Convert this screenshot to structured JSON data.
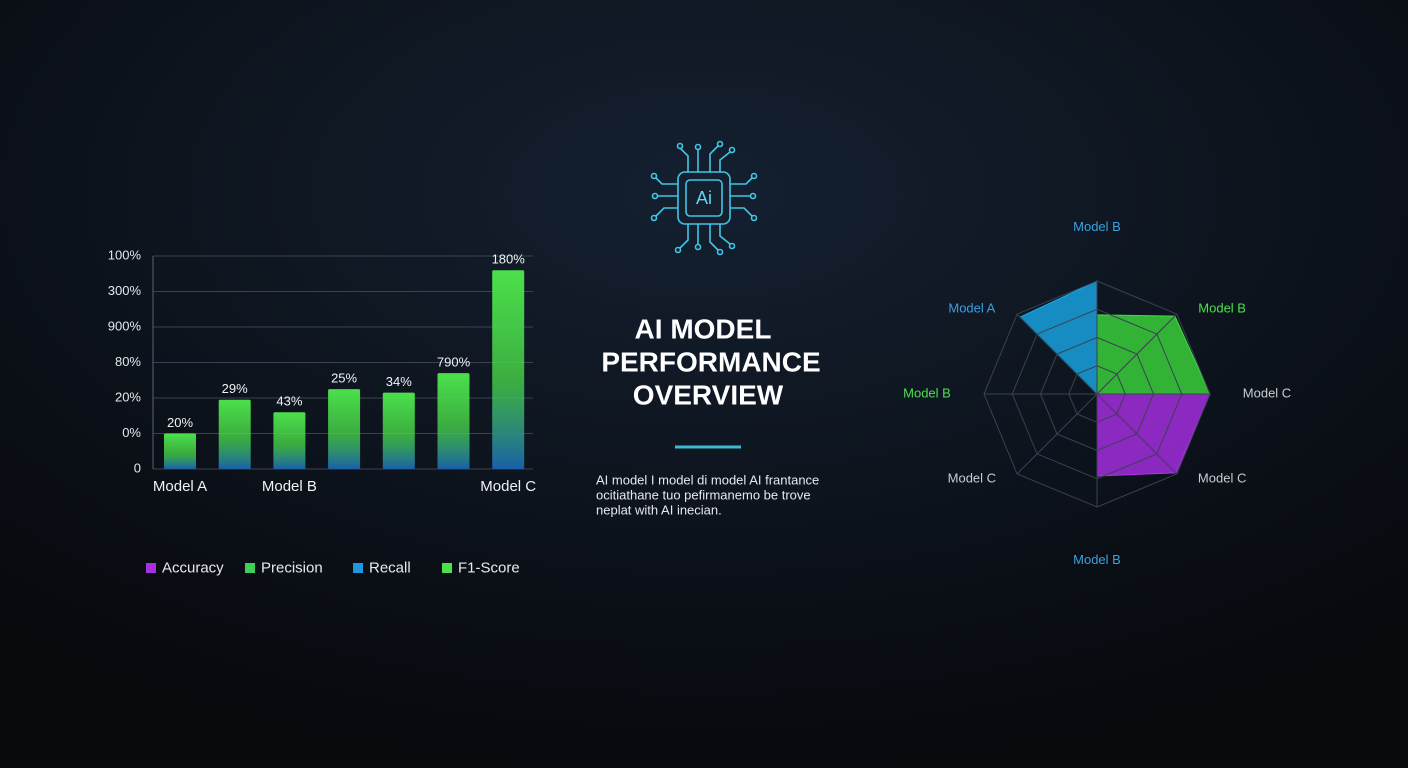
{
  "title_lines": [
    "AI MODEL",
    "PERFORMANCE",
    "OVERVIEW"
  ],
  "description_lines": [
    "AI model I model di model AI frantance",
    "ocitiathane tuo pefirmanemo be trove",
    "neplat with AI inecian."
  ],
  "icon_label": "Ai",
  "chart_data": [
    {
      "type": "bar",
      "categories": [
        "Model A",
        null,
        "Model B",
        null,
        null,
        null,
        "Model C"
      ],
      "values": [
        1.0,
        1.95,
        1.6,
        2.25,
        2.15,
        2.7,
        5.6
      ],
      "value_labels": [
        "20%",
        "29%",
        "43%",
        "25%",
        "34%",
        "790%",
        "180%"
      ],
      "color": "#4be04b",
      "color2": "#1a5fa8",
      "ylim": [
        0,
        6
      ],
      "yticks": [
        {
          "value": 0,
          "label": "0"
        },
        {
          "value": 1,
          "label": "0%"
        },
        {
          "value": 2,
          "label": "20%"
        },
        {
          "value": 3,
          "label": "80%"
        },
        {
          "value": 4,
          "label": "900%"
        },
        {
          "value": 5,
          "label": "300%"
        },
        {
          "value": 6,
          "label": "100%"
        }
      ],
      "grid": true,
      "legend": [
        {
          "name": "Accuracy",
          "color": "#a62fe0"
        },
        {
          "name": "Precision",
          "color": "#3ecf5a"
        },
        {
          "name": "Recall",
          "color": "#2196e0"
        },
        {
          "name": "F1-Score",
          "color": "#4be04b"
        }
      ]
    },
    {
      "type": "radar",
      "axes": [
        "Model B",
        "Model B",
        "Model C",
        "Model C",
        "Model B",
        "Model C",
        "Model B",
        "Model A"
      ],
      "axis_label_colors": [
        "#3aa0e0",
        "#4be04b",
        "#c8ccd2",
        "#c8ccd2",
        "#3aa0e0",
        "#c8ccd2",
        "#4be04b",
        "#3aa0e0"
      ],
      "rlim": [
        0,
        4
      ],
      "rticks": [
        1,
        2,
        3,
        4
      ],
      "series": [
        {
          "color": "#18aef0",
          "values": [
            4,
            0,
            0,
            0,
            0,
            0,
            0,
            3.85
          ]
        },
        {
          "color": "#3ee03e",
          "values": [
            2.8,
            3.9,
            4,
            0,
            0,
            0,
            0,
            0
          ]
        },
        {
          "color": "#b030f0",
          "values": [
            0,
            0,
            4,
            3.95,
            2.9,
            0,
            0,
            0
          ]
        }
      ]
    }
  ]
}
